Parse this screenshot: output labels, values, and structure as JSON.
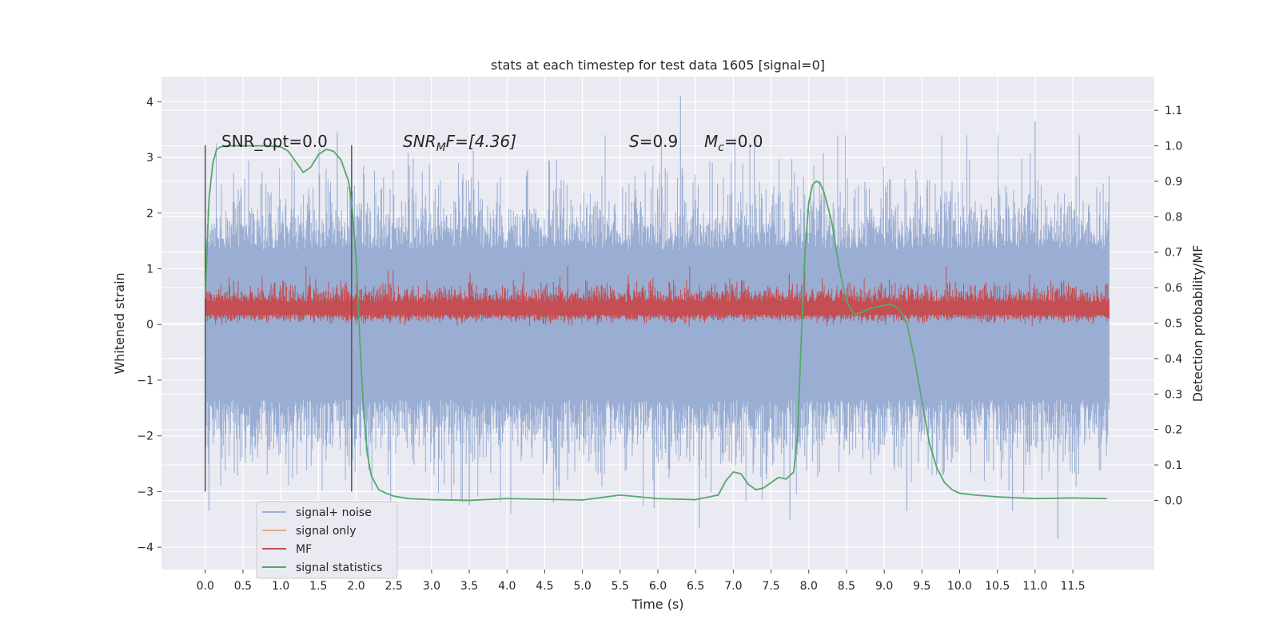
{
  "chart_data": {
    "type": "line",
    "title": "stats at each timestep for test data 1605 [signal=0]",
    "xlabel": "Time (s)",
    "ylabel_left": "Whitened strain",
    "ylabel_right": "Detection probability/MF",
    "xlim": [
      -0.58,
      12.58
    ],
    "ylim_left": [
      -4.4,
      4.45
    ],
    "ylim_right": [
      -0.195,
      1.195
    ],
    "x_ticks": [
      "0.0",
      "0.5",
      "1.0",
      "1.5",
      "2.0",
      "2.5",
      "3.0",
      "3.5",
      "4.0",
      "4.5",
      "5.0",
      "5.5",
      "6.0",
      "6.5",
      "7.0",
      "7.5",
      "8.0",
      "8.5",
      "9.0",
      "9.5",
      "10.0",
      "10.5",
      "11.0",
      "11.5"
    ],
    "y_ticks_left": [
      "4",
      "3",
      "2",
      "1",
      "0",
      "−1",
      "−2",
      "−3",
      "−4"
    ],
    "y_ticks_right": [
      "1.1",
      "1.0",
      "0.9",
      "0.8",
      "0.7",
      "0.6",
      "0.5",
      "0.4",
      "0.3",
      "0.2",
      "0.1",
      "0.0"
    ],
    "grid": true,
    "legend_position": "lower-left",
    "annotations": {
      "snr_opt": "SNR_opt=0.0",
      "snr_mf_main": "SNR",
      "snr_mf_sub": "M",
      "snr_mf_rest": "F=[4.36]",
      "s_main": "S",
      "s_rest": "=0.9",
      "mc_main": "M",
      "mc_sub": "c",
      "mc_rest": "=0.0"
    },
    "vlines": [
      0.0,
      1.94
    ],
    "series": [
      {
        "name": "signal+ noise",
        "axis": "left",
        "color": "#9aaed3",
        "description_range": [
          -3.8,
          4.1
        ],
        "x_range": [
          0.0,
          11.98
        ]
      },
      {
        "name": "signal only",
        "axis": "left",
        "color": "#e8a98a",
        "x_range": [
          0.0,
          11.98
        ]
      },
      {
        "name": "MF",
        "axis": "right",
        "color": "#c44e52",
        "value_range": [
          0.49,
          0.66
        ]
      },
      {
        "name": "signal statistics",
        "axis": "right",
        "color": "#55a868",
        "x": [
          0.0,
          0.05,
          0.1,
          0.15,
          0.2,
          0.3,
          0.5,
          0.8,
          1.0,
          1.1,
          1.2,
          1.3,
          1.4,
          1.5,
          1.6,
          1.7,
          1.8,
          1.9,
          1.95,
          2.0,
          2.05,
          2.1,
          2.15,
          2.2,
          2.3,
          2.4,
          2.5,
          2.7,
          3.0,
          3.5,
          4.0,
          4.5,
          5.0,
          5.5,
          6.0,
          6.5,
          6.8,
          6.9,
          7.0,
          7.1,
          7.2,
          7.3,
          7.4,
          7.5,
          7.6,
          7.7,
          7.8,
          7.85,
          7.9,
          7.95,
          8.0,
          8.05,
          8.1,
          8.15,
          8.2,
          8.3,
          8.4,
          8.5,
          8.6,
          8.7,
          8.8,
          8.9,
          9.0,
          9.1,
          9.2,
          9.3,
          9.4,
          9.5,
          9.6,
          9.7,
          9.8,
          9.9,
          10.0,
          10.2,
          10.5,
          11.0,
          11.5,
          11.95
        ],
        "y": [
          0.57,
          0.85,
          0.95,
          0.99,
          0.997,
          1.0,
          1.0,
          1.0,
          0.997,
          0.985,
          0.955,
          0.925,
          0.94,
          0.975,
          0.99,
          0.985,
          0.96,
          0.9,
          0.82,
          0.68,
          0.45,
          0.25,
          0.13,
          0.07,
          0.03,
          0.02,
          0.012,
          0.005,
          0.002,
          0.0,
          0.005,
          0.003,
          0.001,
          0.015,
          0.005,
          0.002,
          0.015,
          0.055,
          0.08,
          0.075,
          0.045,
          0.03,
          0.035,
          0.05,
          0.065,
          0.06,
          0.08,
          0.18,
          0.45,
          0.7,
          0.84,
          0.89,
          0.9,
          0.895,
          0.87,
          0.79,
          0.66,
          0.56,
          0.525,
          0.53,
          0.54,
          0.545,
          0.55,
          0.552,
          0.54,
          0.5,
          0.4,
          0.28,
          0.16,
          0.09,
          0.05,
          0.03,
          0.02,
          0.015,
          0.01,
          0.005,
          0.007,
          0.005
        ]
      }
    ]
  },
  "colors": {
    "background": "#eaeaf2",
    "grid": "#ffffff",
    "noise": "#9aaed3",
    "signal_only": "#e8a98a",
    "mf": "#c44e52",
    "stat": "#55a868",
    "vline": "#555555"
  }
}
